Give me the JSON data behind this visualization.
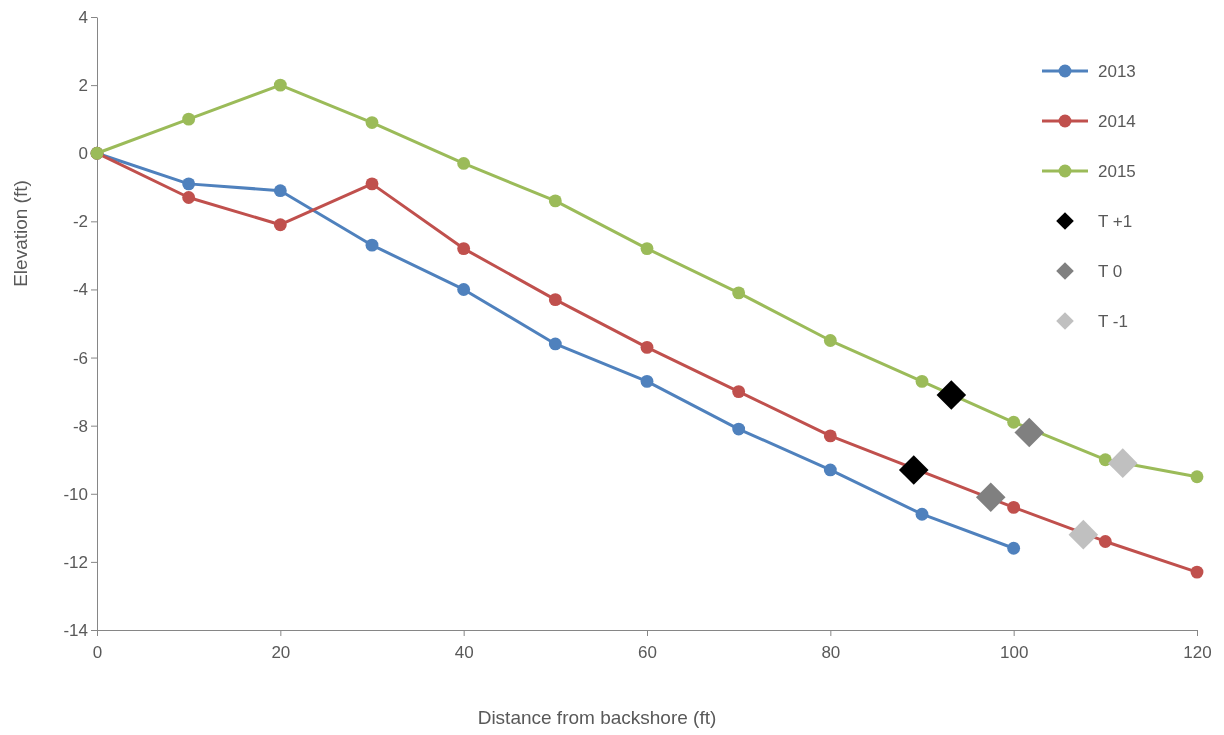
{
  "chart_data": {
    "type": "line",
    "xlabel": "Distance from backshore (ft)",
    "ylabel": "Elevation (ft)",
    "xlim": [
      0,
      120
    ],
    "xticks": [
      0,
      20,
      40,
      60,
      80,
      100,
      120
    ],
    "ylim": [
      -14,
      4
    ],
    "yticks": [
      -14,
      -12,
      -10,
      -8,
      -6,
      -4,
      -2,
      0,
      2,
      4
    ],
    "grid": false,
    "legend": "right",
    "marker": "circle",
    "line_style": "solid",
    "series": [
      {
        "name": "2013",
        "color": "#4f81bd",
        "x": [
          0,
          10,
          20,
          30,
          40,
          50,
          60,
          70,
          80,
          90,
          100
        ],
        "values": [
          0,
          -0.9,
          -1.1,
          -2.7,
          -4.0,
          -5.6,
          -6.7,
          -8.1,
          -9.3,
          -10.6,
          -11.6
        ]
      },
      {
        "name": "2014",
        "color": "#c0504d",
        "x": [
          0,
          10,
          20,
          30,
          40,
          50,
          60,
          70,
          80,
          90,
          100,
          110,
          120
        ],
        "values": [
          0,
          -1.3,
          -2.1,
          -0.9,
          -2.8,
          -4.3,
          -5.7,
          -7.0,
          -8.3,
          null,
          -10.4,
          -11.4,
          -12.3
        ]
      },
      {
        "name": "2015",
        "color": "#9bbb59",
        "x": [
          0,
          10,
          20,
          30,
          40,
          50,
          60,
          70,
          80,
          90,
          100,
          110,
          120
        ],
        "values": [
          0,
          1.0,
          2.0,
          0.9,
          -0.3,
          -1.4,
          -2.8,
          -4.1,
          -5.5,
          -6.7,
          -7.9,
          -9.0,
          -9.5
        ]
      },
      {
        "name": "T +1",
        "type": "scatter",
        "marker": "diamond",
        "color": "#000000",
        "x": [
          93.2,
          89.1
        ],
        "values": [
          -7.1,
          -9.3
        ]
      },
      {
        "name": "T 0",
        "type": "scatter",
        "marker": "diamond",
        "color": "#808080",
        "x": [
          101.7,
          97.5
        ],
        "values": [
          -8.2,
          -10.1
        ]
      },
      {
        "name": "T -1",
        "type": "scatter",
        "marker": "diamond",
        "color": "#c0c0c0",
        "x": [
          111.9,
          107.6
        ],
        "values": [
          -9.1,
          -11.2
        ]
      }
    ]
  }
}
